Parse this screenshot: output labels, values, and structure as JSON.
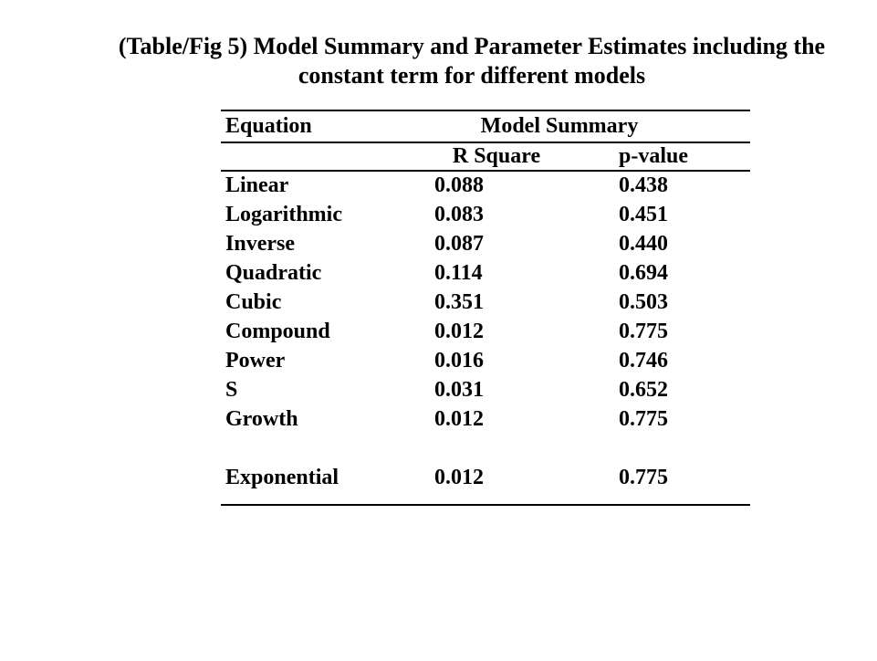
{
  "page": {
    "background_color": "#ffffff",
    "text_color": "#000000"
  },
  "title": {
    "line1": "(Table/Fig 5) Model Summary and Parameter Estimates including the",
    "line2": "constant term for different models"
  },
  "table": {
    "col1_header": "Equation",
    "group_header": "Model Summary",
    "col2_header": "R Square",
    "col3_header": "p-value",
    "rows": [
      {
        "equation": "Linear",
        "r_square": "0.088",
        "p_value": "0.438"
      },
      {
        "equation": "Logarithmic",
        "r_square": "0.083",
        "p_value": "0.451"
      },
      {
        "equation": "Inverse",
        "r_square": "0.087",
        "p_value": "0.440"
      },
      {
        "equation": "Quadratic",
        "r_square": "0.114",
        "p_value": "0.694"
      },
      {
        "equation": "Cubic",
        "r_square": "0.351",
        "p_value": "0.503"
      },
      {
        "equation": "Compound",
        "r_square": "0.012",
        "p_value": "0.775"
      },
      {
        "equation": "Power",
        "r_square": "0.016",
        "p_value": "0.746"
      },
      {
        "equation": "S",
        "r_square": "0.031",
        "p_value": "0.652"
      },
      {
        "equation": "Growth",
        "r_square": "0.012",
        "p_value": "0.775"
      },
      {
        "equation": "Exponential",
        "r_square": "0.012",
        "p_value": "0.775"
      }
    ]
  },
  "chart_data": {
    "type": "table",
    "title": "(Table/Fig 5) Model Summary and Parameter Estimates including the constant term for different models",
    "columns": [
      "Equation",
      "R Square",
      "p-value"
    ],
    "column_group": {
      "label": "Model Summary",
      "spans": [
        "R Square",
        "p-value"
      ]
    },
    "rows": [
      [
        "Linear",
        0.088,
        0.438
      ],
      [
        "Logarithmic",
        0.083,
        0.451
      ],
      [
        "Inverse",
        0.087,
        0.44
      ],
      [
        "Quadratic",
        0.114,
        0.694
      ],
      [
        "Cubic",
        0.351,
        0.503
      ],
      [
        "Compound",
        0.012,
        0.775
      ],
      [
        "Power",
        0.016,
        0.746
      ],
      [
        "S",
        0.031,
        0.652
      ],
      [
        "Growth",
        0.012,
        0.775
      ],
      [
        "Exponential",
        0.012,
        0.775
      ]
    ]
  }
}
